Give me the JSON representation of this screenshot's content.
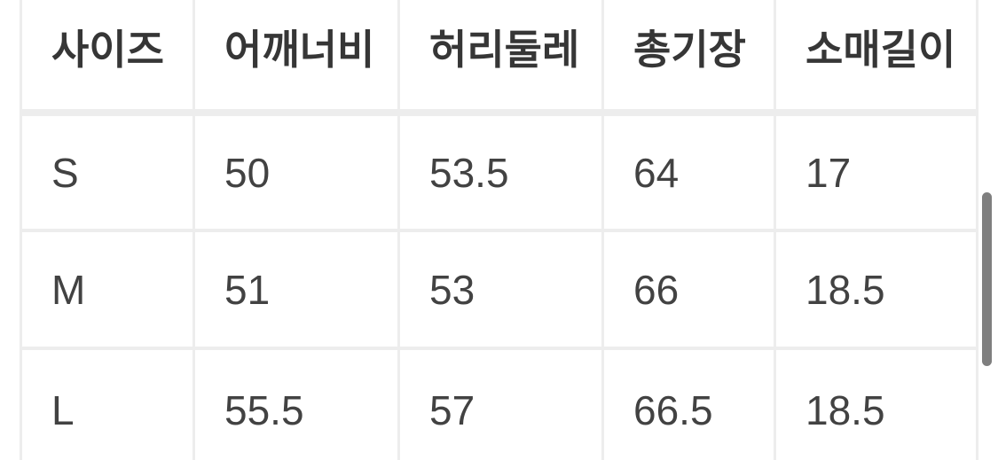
{
  "size_table": {
    "headers": [
      "사이즈",
      "어깨너비",
      "허리둘레",
      "총기장",
      "소매길이"
    ],
    "rows": [
      {
        "cells": [
          "S",
          "50",
          "53.5",
          "64",
          "17"
        ]
      },
      {
        "cells": [
          "M",
          "51",
          "53",
          "66",
          "18.5"
        ]
      },
      {
        "cells": [
          "L",
          "55.5",
          "57",
          "66.5",
          "18.5"
        ]
      }
    ]
  },
  "scrollbar": {
    "orientation": "vertical"
  },
  "colors": {
    "cell_bg": "#ffffff",
    "grid_line": "#ededed",
    "header_text": "#363636",
    "cell_text": "#424242",
    "scrollbar_thumb": "#7f7f7f"
  }
}
